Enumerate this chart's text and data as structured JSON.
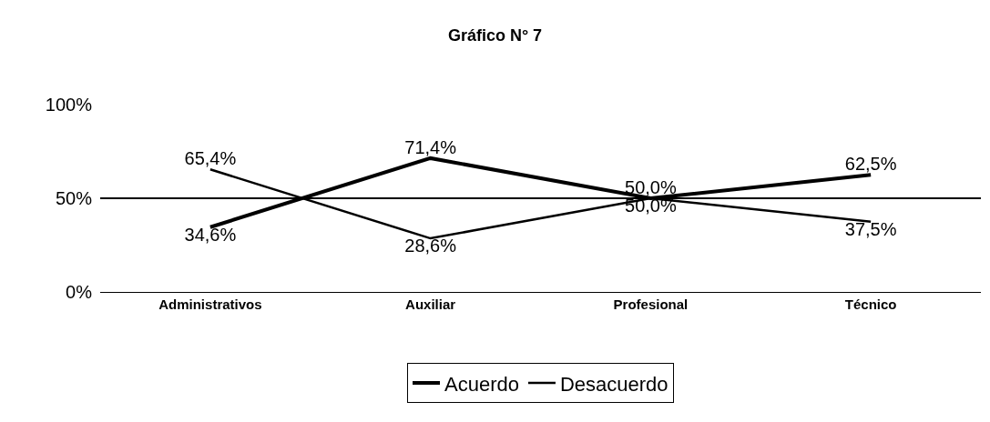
{
  "chart_data": {
    "type": "line",
    "title": "Gráfico N° 7",
    "categories": [
      "Administrativos",
      "Auxiliar",
      "Profesional",
      "Técnico"
    ],
    "series": [
      {
        "name": "Acuerdo",
        "color": "#000000",
        "values": [
          34.6,
          71.4,
          50.0,
          62.5
        ],
        "value_labels": [
          "34,6%",
          "71,4%",
          "50,0%",
          "62,5%"
        ]
      },
      {
        "name": "Desacuerdo",
        "color": "#000000",
        "values": [
          65.4,
          28.6,
          50.0,
          37.5
        ],
        "value_labels": [
          "65,4%",
          "28,6%",
          "50,0%",
          "37,5%"
        ]
      }
    ],
    "ylim": [
      0,
      100
    ],
    "yticks": [
      {
        "value": 0,
        "label": "0%"
      },
      {
        "value": 50,
        "label": "50%"
      },
      {
        "value": 100,
        "label": "100%"
      }
    ],
    "grid": "y",
    "legend": "bottom",
    "marker": "none",
    "line_style": "solid"
  }
}
